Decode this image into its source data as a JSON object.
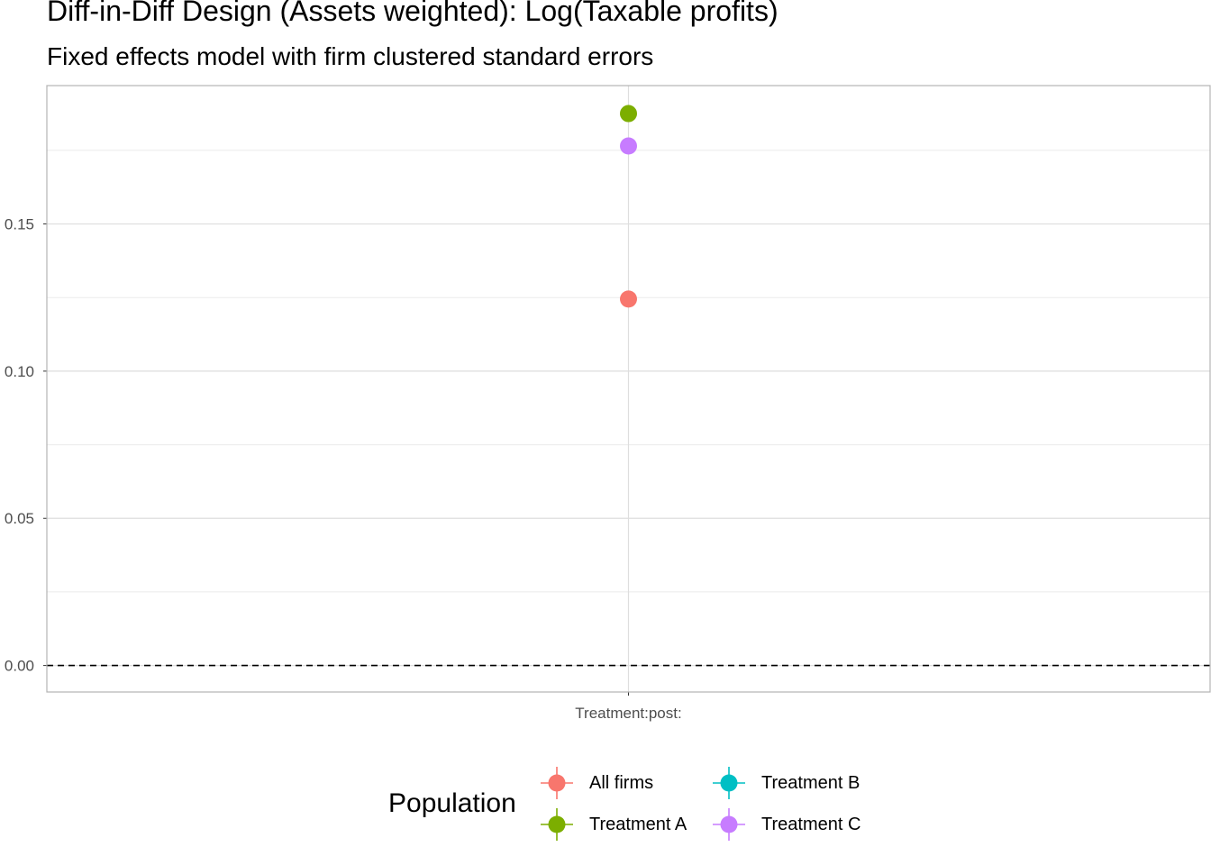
{
  "chart_data": {
    "type": "scatter",
    "title": "Diff-in-Diff Design (Assets weighted): Log(Taxable profits)",
    "subtitle": "Fixed effects model with firm clustered standard errors",
    "xlabel": "",
    "ylabel": "",
    "categories": [
      "Treatment:post:"
    ],
    "ylim": [
      -0.009,
      0.197
    ],
    "yticks": [
      0.0,
      0.05,
      0.1,
      0.15
    ],
    "ytick_labels": [
      "0.00",
      "0.05",
      "0.10",
      "0.15"
    ],
    "reference_line": {
      "y": 0,
      "style": "dashed"
    },
    "grid": true,
    "legend": {
      "title": "Population",
      "position": "bottom"
    },
    "series": [
      {
        "name": "All firms",
        "color": "#F8766D",
        "values": [
          0.1245
        ]
      },
      {
        "name": "Treatment A",
        "color": "#7CAE00",
        "values": [
          0.1875
        ]
      },
      {
        "name": "Treatment B",
        "color": "#00BFC4",
        "values": []
      },
      {
        "name": "Treatment C",
        "color": "#C77CFF",
        "values": [
          0.1765
        ]
      }
    ]
  }
}
